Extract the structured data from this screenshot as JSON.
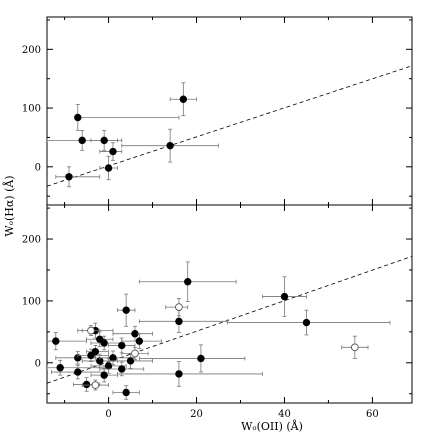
{
  "chart_data": [
    {
      "type": "scatter",
      "panel": "top",
      "xlim": [
        -14,
        69
      ],
      "ylim": [
        -65,
        255
      ],
      "yticks": [
        0,
        100,
        200
      ],
      "show_x_tick_labels": false,
      "dashed_line": {
        "x": [
          -14,
          69
        ],
        "y": [
          -33,
          172
        ]
      },
      "points": [
        {
          "x": -7,
          "y": 84,
          "xerr_lo": 0,
          "xerr_hi": 23,
          "yerr": 22,
          "filled": true
        },
        {
          "x": -6,
          "y": 45,
          "xerr_lo": 8,
          "xerr_hi": 9,
          "yerr": 17,
          "filled": true
        },
        {
          "x": -9,
          "y": -17,
          "xerr_lo": 3,
          "xerr_hi": 7,
          "yerr": 17,
          "filled": true
        },
        {
          "x": -1,
          "y": 45,
          "xerr_lo": 3,
          "xerr_hi": 3,
          "yerr": 17,
          "filled": true
        },
        {
          "x": 0,
          "y": -2,
          "xerr_lo": 2,
          "xerr_hi": 2,
          "yerr": 20,
          "filled": true
        },
        {
          "x": 1,
          "y": 26,
          "xerr_lo": 3,
          "xerr_hi": 2,
          "yerr": 15,
          "filled": true
        },
        {
          "x": 14,
          "y": 36,
          "xerr_lo": 11,
          "xerr_hi": 11,
          "yerr": 28,
          "filled": true
        },
        {
          "x": 17,
          "y": 115,
          "xerr_lo": 3,
          "xerr_hi": 3,
          "yerr": 28,
          "filled": true
        }
      ]
    },
    {
      "type": "scatter",
      "panel": "bottom",
      "xlim": [
        -14,
        69
      ],
      "ylim": [
        -65,
        255
      ],
      "xlabel": "Wₒ(OII)  (Å)",
      "ylabel": "Wₒ(Hα)  (Å)",
      "xticks": [
        0,
        20,
        40,
        60
      ],
      "yticks": [
        0,
        100,
        200
      ],
      "dashed_line": {
        "x": [
          -14,
          69
        ],
        "y": [
          -33,
          172
        ]
      },
      "points": [
        {
          "x": -12,
          "y": 35,
          "xerr_lo": 3,
          "xerr_hi": 7,
          "yerr": 14,
          "filled": true
        },
        {
          "x": -11,
          "y": -8,
          "xerr_lo": 3,
          "xerr_hi": 10,
          "yerr": 12,
          "filled": true
        },
        {
          "x": -7,
          "y": 8,
          "xerr_lo": 5,
          "xerr_hi": 4,
          "yerr": 10,
          "filled": true
        },
        {
          "x": -7,
          "y": -15,
          "xerr_lo": 6,
          "xerr_hi": 6,
          "yerr": 11,
          "filled": true
        },
        {
          "x": -5,
          "y": -35,
          "xerr_lo": 3,
          "xerr_hi": 3,
          "yerr": 11,
          "filled": true
        },
        {
          "x": -4,
          "y": 12,
          "xerr_lo": 3,
          "xerr_hi": 4,
          "yerr": 10,
          "filled": true
        },
        {
          "x": -3,
          "y": 52,
          "xerr_lo": 4,
          "xerr_hi": 4,
          "yerr": 12,
          "filled": true
        },
        {
          "x": -3,
          "y": 18,
          "xerr_lo": 2,
          "xerr_hi": 3,
          "yerr": 10,
          "filled": true
        },
        {
          "x": -2,
          "y": 38,
          "xerr_lo": 3,
          "xerr_hi": 3,
          "yerr": 12,
          "filled": true
        },
        {
          "x": -2,
          "y": 3,
          "xerr_lo": 4,
          "xerr_hi": 4,
          "yerr": 11,
          "filled": true
        },
        {
          "x": -1,
          "y": 32,
          "xerr_lo": 3,
          "xerr_hi": 4,
          "yerr": 11,
          "filled": true
        },
        {
          "x": -1,
          "y": -20,
          "xerr_lo": 3,
          "xerr_hi": 3,
          "yerr": 11,
          "filled": true
        },
        {
          "x": 0,
          "y": -5,
          "xerr_lo": 4,
          "xerr_hi": 4,
          "yerr": 12,
          "filled": true
        },
        {
          "x": 1,
          "y": 8,
          "xerr_lo": 3,
          "xerr_hi": 5,
          "yerr": 11,
          "filled": true
        },
        {
          "x": 3,
          "y": 28,
          "xerr_lo": 3,
          "xerr_hi": 3,
          "yerr": 12,
          "filled": true
        },
        {
          "x": 3,
          "y": -10,
          "xerr_lo": 5,
          "xerr_hi": 5,
          "yerr": 11,
          "filled": true
        },
        {
          "x": 4,
          "y": -48,
          "xerr_lo": 3,
          "xerr_hi": 3,
          "yerr": 11,
          "filled": true
        },
        {
          "x": 4,
          "y": 85,
          "xerr_lo": 2,
          "xerr_hi": 2,
          "yerr": 26,
          "filled": true
        },
        {
          "x": 5,
          "y": 3,
          "xerr_lo": 5,
          "xerr_hi": 5,
          "yerr": 12,
          "filled": true
        },
        {
          "x": 6,
          "y": 47,
          "xerr_lo": 5,
          "xerr_hi": 4,
          "yerr": 12,
          "filled": true
        },
        {
          "x": 7,
          "y": 35,
          "xerr_lo": 4,
          "xerr_hi": 5,
          "yerr": 12,
          "filled": true
        },
        {
          "x": 16,
          "y": 67,
          "xerr_lo": 9,
          "xerr_hi": 11,
          "yerr": 18,
          "filled": true
        },
        {
          "x": 16,
          "y": -18,
          "xerr_lo": 14,
          "xerr_hi": 19,
          "yerr": 20,
          "filled": true
        },
        {
          "x": 18,
          "y": 131,
          "xerr_lo": 11,
          "xerr_hi": 11,
          "yerr": 32,
          "filled": true
        },
        {
          "x": 21,
          "y": 7,
          "xerr_lo": 14,
          "xerr_hi": 10,
          "yerr": 22,
          "filled": true
        },
        {
          "x": 40,
          "y": 107,
          "xerr_lo": 5,
          "xerr_hi": 5,
          "yerr": 32,
          "filled": true
        },
        {
          "x": 45,
          "y": 65,
          "xerr_lo": 18,
          "xerr_hi": 19,
          "yerr": 20,
          "filled": true
        },
        {
          "x": -4,
          "y": 52,
          "xerr_lo": 2,
          "xerr_hi": 2,
          "yerr": 8,
          "filled": false
        },
        {
          "x": -3,
          "y": -36,
          "xerr_lo": 3,
          "xerr_hi": 3,
          "yerr": 8,
          "filled": false
        },
        {
          "x": 6,
          "y": 15,
          "xerr_lo": 3,
          "xerr_hi": 3,
          "yerr": 10,
          "filled": false
        },
        {
          "x": 16,
          "y": 90,
          "xerr_lo": 3,
          "xerr_hi": 2,
          "yerr": 14,
          "filled": false
        },
        {
          "x": 56,
          "y": 25,
          "xerr_lo": 3,
          "xerr_hi": 3,
          "yerr": 18,
          "filled": false
        }
      ]
    }
  ]
}
